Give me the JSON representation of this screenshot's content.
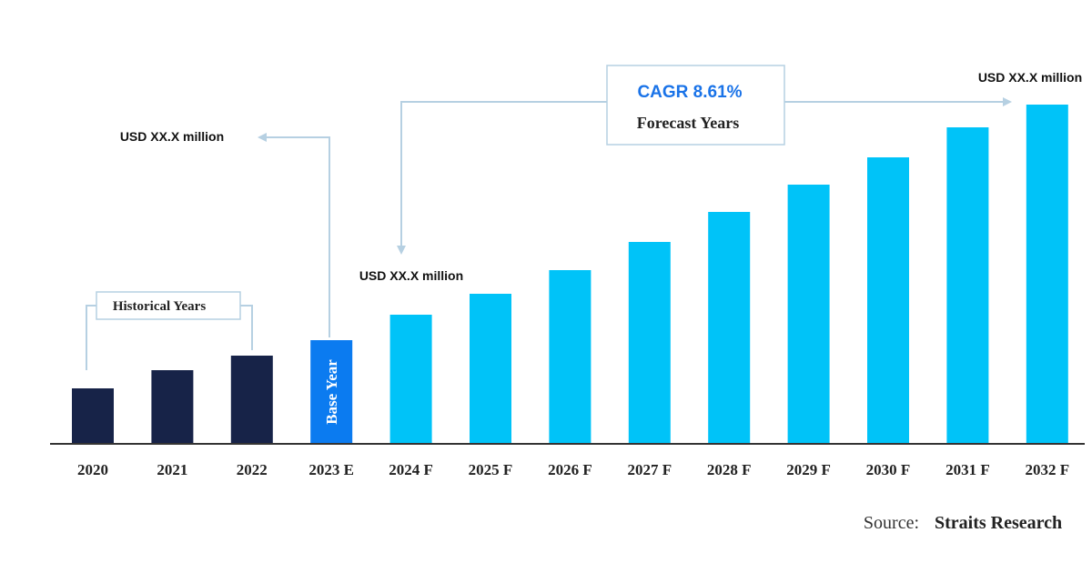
{
  "chart_data": {
    "type": "bar",
    "categories": [
      "2020",
      "2021",
      "2022",
      "2023 E",
      "2024 F",
      "2025 F",
      "2026 F",
      "2027 F",
      "2028 F",
      "2029 F",
      "2030 F",
      "2031 F",
      "2032 F"
    ],
    "values": [
      61,
      81,
      97,
      114,
      142,
      165,
      191,
      222,
      255,
      285,
      315,
      348,
      373
    ],
    "value_unit": "relative (unlabeled axis)",
    "bar_groups": [
      "historical",
      "historical",
      "historical",
      "base",
      "forecast",
      "forecast",
      "forecast",
      "forecast",
      "forecast",
      "forecast",
      "forecast",
      "forecast",
      "forecast"
    ],
    "ylim": [
      0,
      400
    ],
    "grid": false,
    "legend": "none",
    "base_bar_label": "Base Year",
    "historical_label": "Historical Years",
    "forecast_label": "Forecast Years",
    "cagr_label": "CAGR 8.61%",
    "value_callouts": [
      "USD XX.X million",
      "USD XX.X million",
      "USD XX.X million"
    ],
    "colors": {
      "historical": "#172348",
      "base": "#0b7bf0",
      "forecast": "#00c3f8",
      "cagr_text": "#1a73e8",
      "connector": "#b6d0e2",
      "axis": "#333333"
    }
  },
  "source": {
    "prefix": "Source:",
    "name": "Straits Research"
  }
}
